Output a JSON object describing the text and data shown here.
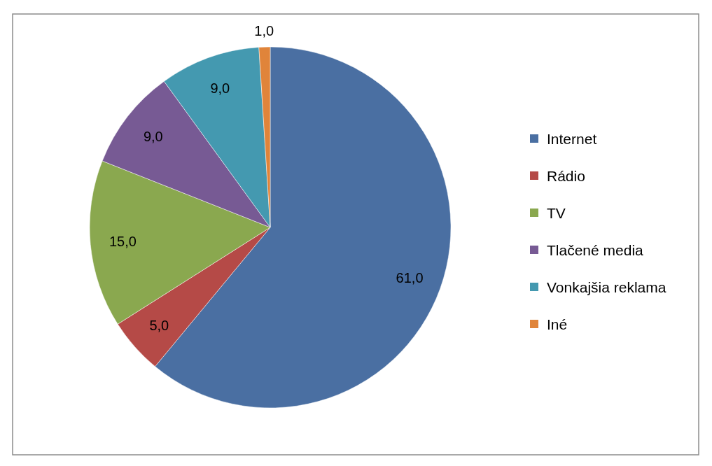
{
  "chart_data": {
    "type": "pie",
    "categories": [
      "Internet",
      "Rádio",
      "TV",
      "Tlačené media",
      "Vonkajšia reklama",
      "Iné"
    ],
    "values": [
      61,
      5,
      15,
      9,
      9,
      1
    ],
    "colors": [
      "#4a6fa2",
      "#b54a47",
      "#8aa84f",
      "#775a94",
      "#4499b0",
      "#e0843a"
    ],
    "value_labels": [
      "61,0",
      "5,0",
      "15,0",
      "9,0",
      "9,0",
      "1,0"
    ],
    "legend": "right"
  }
}
